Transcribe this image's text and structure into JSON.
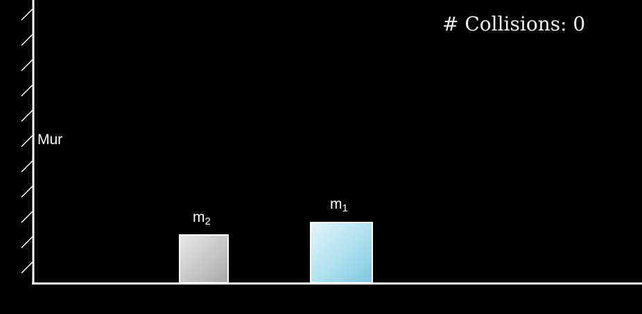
{
  "scene": {
    "wall_label": "Mur",
    "collision_counter": "# Collisions: 0",
    "blocks": [
      {
        "id": "m2",
        "label_main": "m",
        "label_sub": "2",
        "color": "#c6c6c6"
      },
      {
        "id": "m1",
        "label_main": "m",
        "label_sub": "1",
        "color": "#ade0ee"
      }
    ],
    "colors": {
      "background": "#000000",
      "lines": "#ffffff"
    }
  }
}
